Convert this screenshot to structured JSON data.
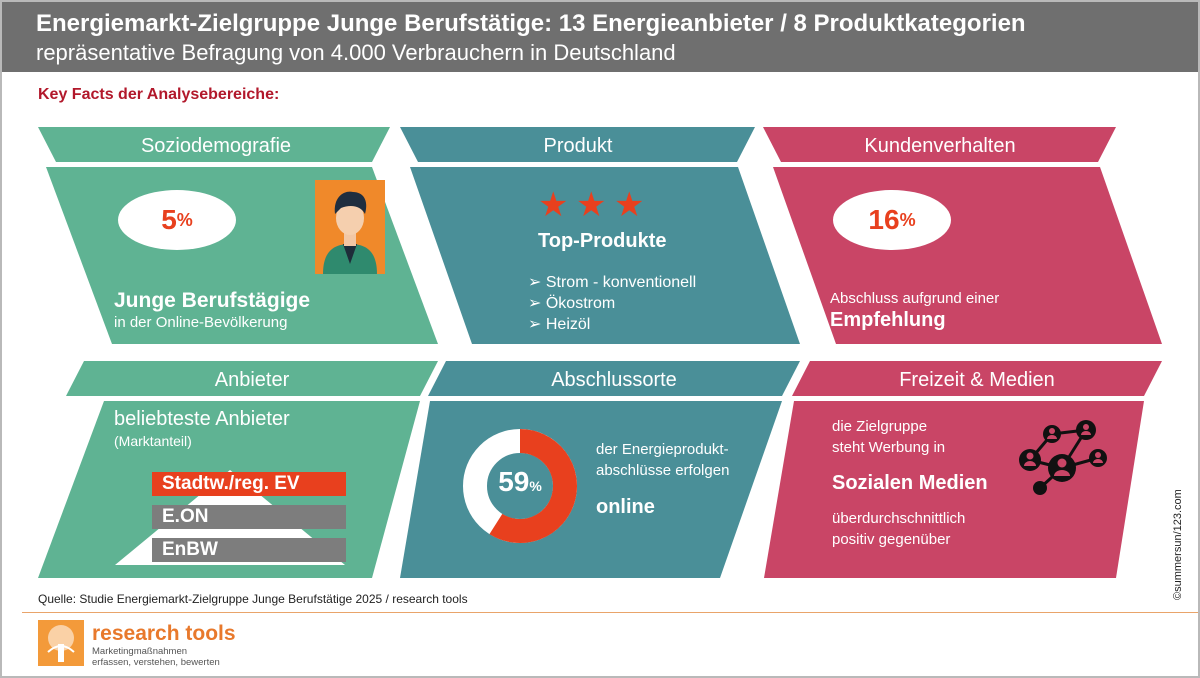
{
  "header": {
    "title": "Energiemarkt-Zielgruppe Junge Berufstätige: 13 Energieanbieter / 8 Produktkategorien",
    "subtitle": "repräsentative Befragung von 4.000 Verbrauchern in Deutschland"
  },
  "section_label": "Key Facts der Analysebereiche:",
  "colors": {
    "green": "#5fb393",
    "teal": "#4a8f98",
    "pink": "#c94566",
    "orange_red": "#e8401e",
    "gray_bar": "#7d7d7d"
  },
  "sozio": {
    "title": "Soziodemografie",
    "pct": "5",
    "pct_unit": "%",
    "headline": "Junge Berufstägige",
    "sub": "in der Online-Bevölkerung",
    "icon": "person-avatar-icon"
  },
  "produkt": {
    "title": "Produkt",
    "icon": "star-icon",
    "stars": 3,
    "headline": "Top-Produkte",
    "items": [
      "Strom - konventionell",
      "Ökostrom",
      "Heizöl"
    ]
  },
  "kunden": {
    "title": "Kundenverhalten",
    "pct": "16",
    "pct_unit": "%",
    "line1": "Abschluss aufgrund einer",
    "line2": "Empfehlung"
  },
  "anbieter": {
    "title": "Anbieter",
    "headline": "beliebteste Anbieter",
    "sub": "(Marktanteil)",
    "ranking": [
      "Stadtw./reg. EV",
      "E.ON",
      "EnBW"
    ]
  },
  "abschluss": {
    "title": "Abschlussorte",
    "pct": "59",
    "pct_unit": "%",
    "share": 0.59,
    "line1": "der Energieprodukt-",
    "line2": "abschlüsse erfolgen",
    "line3": "online"
  },
  "freizeit": {
    "title": "Freizeit & Medien",
    "line1": "die Zielgruppe",
    "line2": "steht Werbung in",
    "headline": "Sozialen Medien",
    "line3": "überdurchschnittlich",
    "line4": "positiv gegenüber",
    "icon": "social-network-icon"
  },
  "footer": {
    "source": "Quelle: Studie Energiemarkt-Zielgruppe Junge Berufstätige 2025 / research tools",
    "brand": "research tools",
    "tagline1": "Marketingmaßnahmen",
    "tagline2": "erfassen, verstehen, bewerten",
    "credit": "©summersun/123.com",
    "logo_icon": "tree-logo-icon"
  }
}
